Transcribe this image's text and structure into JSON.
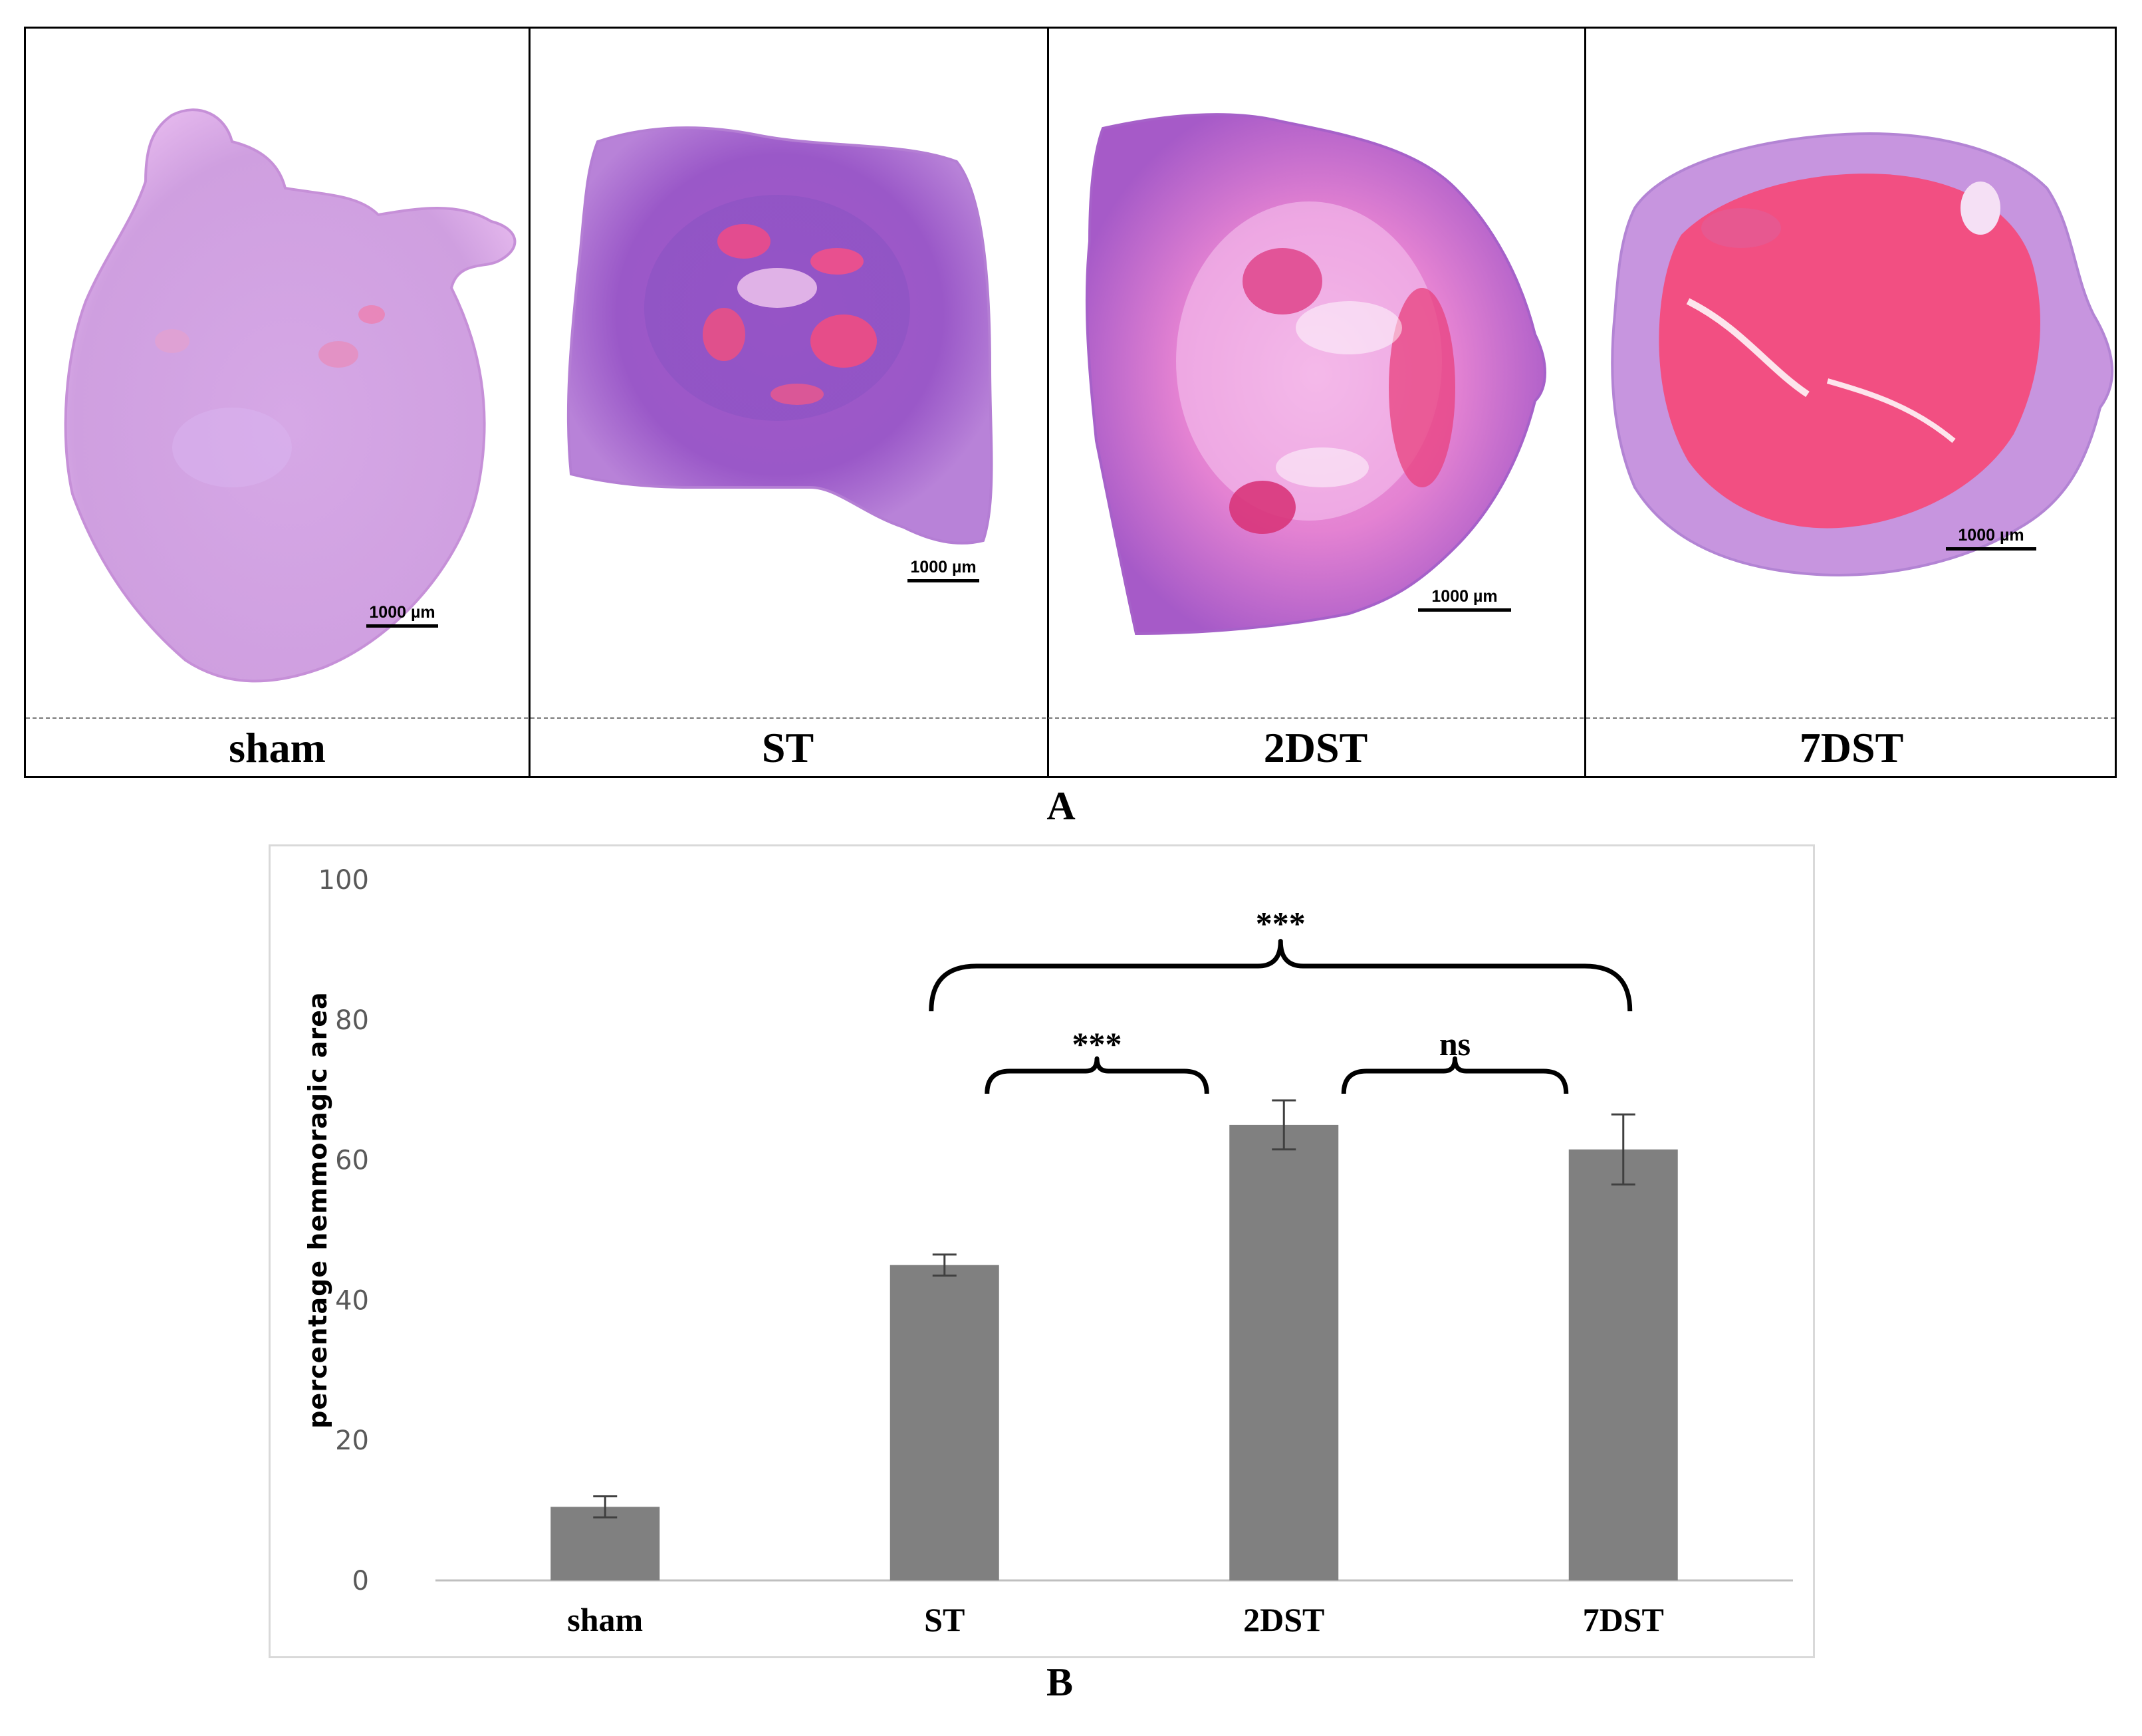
{
  "panel_a": {
    "letter": "A",
    "samples": [
      {
        "label": "sham",
        "scale_bar": "1000 µm"
      },
      {
        "label": "ST",
        "scale_bar": "1000 µm"
      },
      {
        "label": "2DST",
        "scale_bar": "1000 µm"
      },
      {
        "label": "7DST",
        "scale_bar": "1000 µm"
      }
    ]
  },
  "panel_b": {
    "letter": "B"
  },
  "chart_data": {
    "type": "bar",
    "title": "",
    "xlabel": "",
    "ylabel": "percentage hemmoragic area",
    "categories": [
      "sham",
      "ST",
      "2DST",
      "7DST"
    ],
    "values": [
      10.5,
      45,
      65,
      61.5
    ],
    "errors": [
      1.5,
      1.5,
      3.5,
      5
    ],
    "ylim": [
      0,
      100
    ],
    "yticks": [
      "0",
      "20",
      "40",
      "60",
      "80",
      "100"
    ],
    "bar_color": "#808080",
    "grid": false,
    "annotations": [
      {
        "from": "ST",
        "to": "7DST",
        "label": "***"
      },
      {
        "from": "ST",
        "to": "2DST",
        "label": "***"
      },
      {
        "from": "2DST",
        "to": "7DST",
        "label": "ns"
      }
    ]
  }
}
